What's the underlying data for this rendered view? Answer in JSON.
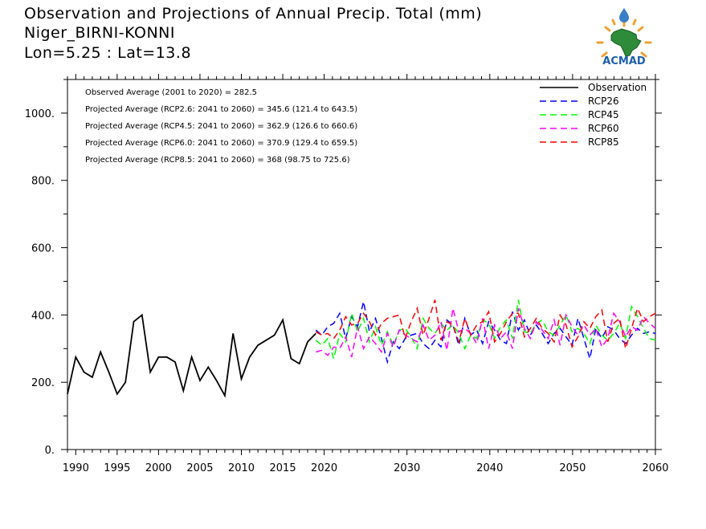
{
  "header": {
    "title_line1": "Observation and Projections of Annual Precip. Total (mm)",
    "title_line2": "Niger_BIRNI-KONNI",
    "title_line3": "Lon=5.25 : Lat=13.8"
  },
  "logo": {
    "text": "ACMAD",
    "icon": "africa-map-sun-logo"
  },
  "chart_data": {
    "type": "line",
    "xlim": [
      1989,
      2060
    ],
    "ylim": [
      0,
      1100
    ],
    "x_ticks_left": [
      1990,
      1995,
      2000,
      2005,
      2010,
      2015,
      2020
    ],
    "x_ticks_right": [
      2030,
      2040,
      2050,
      2060
    ],
    "y_ticks": [
      0,
      200,
      400,
      600,
      800,
      1000
    ],
    "y_tick_labels": [
      "0.",
      "200.",
      "400.",
      "600.",
      "800.",
      "1000."
    ],
    "annotations": [
      "Observed Average (2001 to 2020) = 282.5",
      "Projected Average (RCP2.6: 2041 to 2060) = 345.6 (121.4 to 643.5)",
      "Projected Average (RCP4.5: 2041 to 2060) = 362.9 (126.6 to 660.6)",
      "Projected Average (RCP6.0: 2041 to 2060) = 370.9 (129.4 to 659.5)",
      "Projected Average (RCP8.5: 2041 to 2060) = 368 (98.75 to 725.6)"
    ],
    "legend_position": "top-right",
    "observation": {
      "name": "Observation",
      "color": "#000000",
      "x": [
        1989,
        1990,
        1991,
        1992,
        1993,
        1994,
        1995,
        1996,
        1997,
        1998,
        1999,
        2000,
        2001,
        2002,
        2003,
        2004,
        2005,
        2006,
        2007,
        2008,
        2009,
        2010,
        2011,
        2012,
        2013,
        2014,
        2015,
        2016,
        2017,
        2018,
        2019
      ],
      "values": [
        165,
        275,
        230,
        215,
        290,
        230,
        165,
        200,
        380,
        400,
        230,
        275,
        275,
        260,
        175,
        275,
        205,
        245,
        205,
        160,
        345,
        210,
        275,
        310,
        325,
        340,
        385,
        270,
        255,
        320,
        345
      ]
    },
    "series": [
      {
        "name": "RCP26",
        "color": "#0000ff",
        "x_start": 2019,
        "values": [
          355,
          340,
          365,
          375,
          405,
          330,
          395,
          365,
          440,
          350,
          390,
          330,
          260,
          320,
          300,
          330,
          340,
          345,
          315,
          300,
          325,
          305,
          385,
          370,
          310,
          390,
          340,
          355,
          315,
          380,
          355,
          325,
          315,
          410,
          355,
          385,
          340,
          370,
          345,
          315,
          345,
          360,
          335,
          310,
          390,
          330,
          270,
          360,
          330,
          365,
          355,
          330,
          315,
          340,
          360,
          345,
          350,
          345
        ]
      },
      {
        "name": "RCP45",
        "color": "#00ff00",
        "x_start": 2019,
        "values": [
          325,
          310,
          330,
          270,
          345,
          320,
          405,
          350,
          390,
          320,
          365,
          310,
          350,
          310,
          355,
          360,
          335,
          300,
          390,
          360,
          345,
          375,
          355,
          370,
          345,
          300,
          340,
          330,
          385,
          375,
          330,
          365,
          385,
          330,
          445,
          350,
          345,
          375,
          385,
          350,
          340,
          370,
          400,
          350,
          360,
          345,
          315,
          370,
          340,
          325,
          345,
          375,
          330,
          425,
          395,
          360,
          330,
          325
        ]
      },
      {
        "name": "RCP60",
        "color": "#ff00ff",
        "x_start": 2019,
        "values": [
          290,
          295,
          280,
          305,
          300,
          335,
          275,
          365,
          300,
          335,
          315,
          290,
          345,
          305,
          355,
          340,
          330,
          320,
          370,
          325,
          340,
          380,
          295,
          420,
          350,
          360,
          345,
          315,
          390,
          300,
          370,
          330,
          350,
          300,
          420,
          360,
          330,
          380,
          355,
          330,
          385,
          310,
          400,
          365,
          340,
          370,
          340,
          360,
          305,
          330,
          405,
          380,
          335,
          365,
          355,
          395,
          375,
          360
        ]
      },
      {
        "name": "RCP85",
        "color": "#ff0000",
        "x_start": 2019,
        "values": [
          350,
          340,
          345,
          330,
          355,
          395,
          370,
          375,
          405,
          380,
          340,
          375,
          390,
          395,
          400,
          330,
          380,
          420,
          340,
          390,
          445,
          325,
          380,
          370,
          320,
          390,
          340,
          370,
          380,
          410,
          320,
          345,
          380,
          405,
          405,
          335,
          360,
          390,
          360,
          345,
          320,
          400,
          370,
          305,
          335,
          380,
          360,
          395,
          415,
          320,
          375,
          390,
          300,
          360,
          420,
          380,
          395,
          405
        ]
      }
    ]
  }
}
